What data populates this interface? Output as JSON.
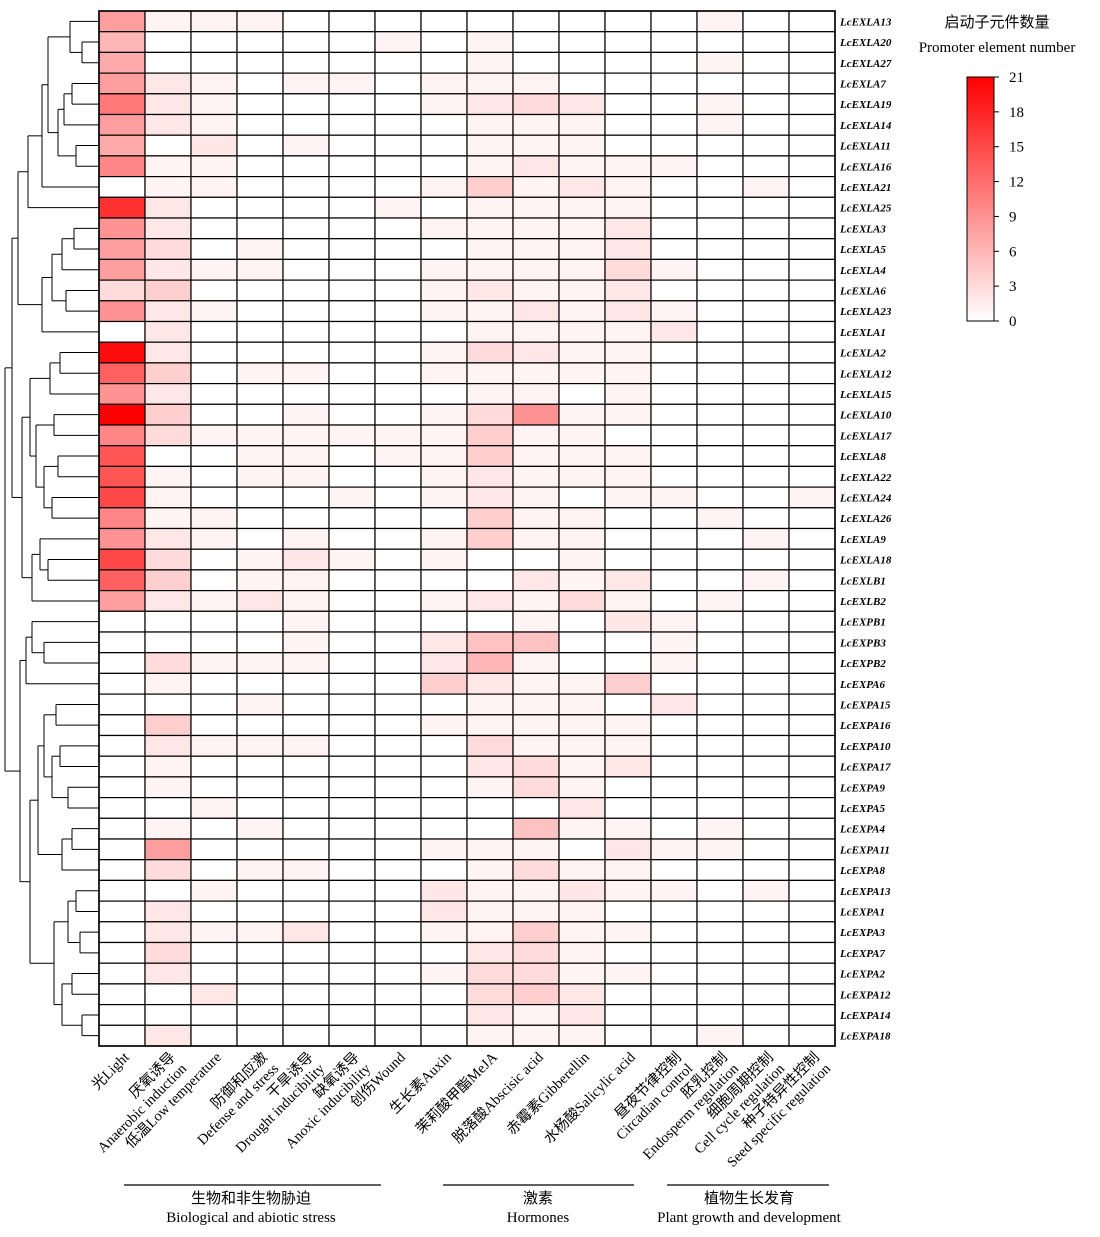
{
  "chart_data": {
    "type": "heatmap",
    "title": "",
    "legend": {
      "title_zh": "启动子元件数量",
      "title_en": "Promoter element number",
      "ticks": [
        21,
        18,
        15,
        12,
        9,
        6,
        3,
        0
      ],
      "min": 0,
      "max": 21,
      "color_low": "#ffffff",
      "color_high": "#ff0000",
      "placement": "top-right"
    },
    "columns": [
      "光Light",
      "厌氧诱导 Anaerobic induction",
      "低温Low temperature",
      "防御和应激 Defense and stress",
      "干旱诱导 Drought inducibility",
      "缺氧诱导 Anoxic inducibility",
      "创伤Wound",
      "生长素Auxin",
      "茉莉酸甲酯MeJA",
      "脱落酸Abscisic acid",
      "赤霉素Gibberellin",
      "水杨酸Salicylic acid",
      "昼夜节律控制 Circadian control",
      "胚乳控制 Endosperm regulation",
      "细胞周期控制 Cell cycle regulation",
      "种子特异性控制 Seed specific regulation"
    ],
    "column_labels": [
      [
        "光Light"
      ],
      [
        "厌氧诱导",
        "Anaerobic induction"
      ],
      [
        "低温Low temperature"
      ],
      [
        "防御和应激",
        "Defense and stress"
      ],
      [
        "干旱诱导",
        "Drought inducibility"
      ],
      [
        "缺氧诱导",
        "Anoxic inducibility"
      ],
      [
        "创伤Wound"
      ],
      [
        "生长素Auxin"
      ],
      [
        "茉莉酸甲酯MeJA"
      ],
      [
        "脱落酸Abscisic acid"
      ],
      [
        "赤霉素Gibberellin"
      ],
      [
        "水杨酸Salicylic acid"
      ],
      [
        "昼夜节律控制",
        "Circadian control"
      ],
      [
        "胚乳控制",
        "Endosperm regulation"
      ],
      [
        "细胞周期控制",
        "Cell cycle regulation"
      ],
      [
        "种子特异性控制",
        "Seed specific regulation"
      ]
    ],
    "column_groups": [
      {
        "zh": "生物和非生物胁迫",
        "en": "Biological and abiotic stress",
        "start": 1,
        "end": 6
      },
      {
        "zh": "激素",
        "en": "Hormones",
        "start": 7,
        "end": 11
      },
      {
        "zh": "植物生长发育",
        "en": "Plant growth and development",
        "start": 12,
        "end": 15
      }
    ],
    "rows": [
      "LcEXLA13",
      "LcEXLA20",
      "LcEXLA27",
      "LcEXLA7",
      "LcEXLA19",
      "LcEXLA14",
      "LcEXLA11",
      "LcEXLA16",
      "LcEXLA21",
      "LcEXLA25",
      "LcEXLA3",
      "LcEXLA5",
      "LcEXLA4",
      "LcEXLA6",
      "LcEXLA23",
      "LcEXLA1",
      "LcEXLA2",
      "LcEXLA12",
      "LcEXLA15",
      "LcEXLA10",
      "LcEXLA17",
      "LcEXLA8",
      "LcEXLA22",
      "LcEXLA24",
      "LcEXLA26",
      "LcEXLA9",
      "LcEXLA18",
      "LcEXLB1",
      "LcEXLB2",
      "LcEXPB1",
      "LcEXPB3",
      "LcEXPB2",
      "LcEXPA6",
      "LcEXPA15",
      "LcEXPA16",
      "LcEXPA10",
      "LcEXPA17",
      "LcEXPA9",
      "LcEXPA5",
      "LcEXPA4",
      "LcEXPA11",
      "LcEXPA8",
      "LcEXPA13",
      "LcEXPA1",
      "LcEXPA3",
      "LcEXPA7",
      "LcEXPA2",
      "LcEXPA12",
      "LcEXPA14",
      "LcEXPA18"
    ],
    "values": [
      [
        8,
        1,
        1,
        1,
        0,
        0,
        0,
        0,
        0,
        0,
        0,
        0,
        0,
        1,
        0,
        0
      ],
      [
        6,
        0,
        0,
        0,
        0,
        0,
        1,
        0,
        1,
        0,
        0,
        0,
        0,
        0,
        0,
        0
      ],
      [
        7,
        0,
        0,
        0,
        0,
        0,
        0,
        0,
        1,
        0,
        0,
        0,
        0,
        1,
        0,
        0
      ],
      [
        8,
        2,
        1,
        0,
        1,
        1,
        0,
        1,
        1,
        1,
        0,
        0,
        0,
        0,
        0,
        0
      ],
      [
        11,
        2,
        1,
        0,
        0,
        0,
        0,
        1,
        2,
        3,
        2,
        0,
        0,
        1,
        0,
        0
      ],
      [
        8,
        2,
        1,
        0,
        0,
        0,
        0,
        0,
        1,
        1,
        1,
        0,
        0,
        1,
        0,
        0
      ],
      [
        7,
        0,
        2,
        0,
        1,
        0,
        0,
        0,
        1,
        1,
        1,
        0,
        0,
        0,
        0,
        0
      ],
      [
        10,
        1,
        1,
        0,
        0,
        0,
        0,
        0,
        1,
        2,
        1,
        1,
        1,
        0,
        0,
        0
      ],
      [
        0,
        1,
        1,
        0,
        0,
        0,
        0,
        1,
        4,
        1,
        2,
        1,
        0,
        0,
        1,
        0
      ],
      [
        17,
        2,
        0,
        0,
        0,
        0,
        1,
        0,
        1,
        1,
        1,
        1,
        0,
        0,
        0,
        0
      ],
      [
        9,
        2,
        0,
        0,
        0,
        0,
        0,
        1,
        1,
        1,
        1,
        2,
        0,
        0,
        0,
        0
      ],
      [
        8,
        3,
        0,
        1,
        0,
        0,
        0,
        0,
        1,
        1,
        1,
        2,
        0,
        0,
        0,
        0
      ],
      [
        8,
        2,
        1,
        1,
        0,
        0,
        0,
        1,
        1,
        1,
        1,
        3,
        1,
        0,
        0,
        0
      ],
      [
        3,
        4,
        0,
        0,
        0,
        0,
        0,
        1,
        2,
        1,
        1,
        2,
        0,
        0,
        0,
        0
      ],
      [
        9,
        2,
        1,
        0,
        0,
        0,
        0,
        1,
        1,
        2,
        1,
        2,
        1,
        0,
        0,
        0
      ],
      [
        0,
        2,
        0,
        0,
        0,
        0,
        0,
        0,
        1,
        1,
        1,
        1,
        2,
        0,
        0,
        0
      ],
      [
        20,
        2,
        0,
        0,
        0,
        0,
        0,
        1,
        3,
        2,
        1,
        1,
        0,
        0,
        0,
        0
      ],
      [
        13,
        4,
        0,
        1,
        1,
        0,
        0,
        1,
        1,
        1,
        1,
        1,
        0,
        0,
        0,
        0
      ],
      [
        9,
        2,
        0,
        0,
        0,
        0,
        0,
        0,
        1,
        1,
        0,
        1,
        0,
        0,
        0,
        0
      ],
      [
        21,
        4,
        0,
        0,
        1,
        0,
        0,
        1,
        3,
        9,
        1,
        1,
        0,
        0,
        0,
        0
      ],
      [
        10,
        3,
        1,
        1,
        1,
        1,
        1,
        1,
        4,
        1,
        1,
        0,
        0,
        0,
        0,
        0
      ],
      [
        14,
        0,
        0,
        1,
        1,
        0,
        1,
        1,
        4,
        1,
        1,
        1,
        0,
        0,
        0,
        0
      ],
      [
        14,
        1,
        0,
        1,
        1,
        0,
        0,
        1,
        2,
        1,
        1,
        1,
        0,
        0,
        0,
        0
      ],
      [
        15,
        1,
        0,
        0,
        0,
        1,
        0,
        1,
        2,
        1,
        0,
        1,
        1,
        0,
        0,
        1
      ],
      [
        10,
        1,
        1,
        0,
        0,
        0,
        0,
        0,
        4,
        1,
        1,
        0,
        0,
        1,
        0,
        0
      ],
      [
        9,
        2,
        1,
        0,
        1,
        0,
        0,
        1,
        4,
        1,
        1,
        0,
        0,
        0,
        1,
        0
      ],
      [
        15,
        3,
        0,
        1,
        2,
        1,
        0,
        1,
        0,
        0,
        1,
        0,
        0,
        0,
        0,
        0
      ],
      [
        13,
        4,
        0,
        1,
        1,
        0,
        0,
        0,
        0,
        2,
        1,
        2,
        0,
        0,
        1,
        0
      ],
      [
        8,
        2,
        1,
        2,
        1,
        0,
        0,
        1,
        2,
        1,
        3,
        1,
        0,
        1,
        0,
        0
      ],
      [
        0,
        0,
        0,
        0,
        1,
        0,
        0,
        0,
        0,
        1,
        0,
        2,
        1,
        0,
        0,
        0
      ],
      [
        0,
        0,
        0,
        0,
        1,
        0,
        0,
        2,
        5,
        5,
        0,
        0,
        1,
        0,
        0,
        0
      ],
      [
        0,
        3,
        1,
        1,
        1,
        0,
        0,
        2,
        6,
        1,
        0,
        0,
        1,
        0,
        0,
        0
      ],
      [
        0,
        1,
        0,
        0,
        0,
        0,
        0,
        4,
        2,
        1,
        1,
        4,
        0,
        0,
        0,
        0
      ],
      [
        0,
        0,
        0,
        1,
        0,
        0,
        0,
        0,
        1,
        1,
        1,
        0,
        2,
        0,
        0,
        0
      ],
      [
        0,
        4,
        0,
        0,
        0,
        0,
        0,
        1,
        1,
        1,
        1,
        1,
        0,
        0,
        0,
        0
      ],
      [
        0,
        2,
        1,
        1,
        1,
        0,
        0,
        0,
        3,
        1,
        1,
        1,
        0,
        0,
        0,
        0
      ],
      [
        0,
        1,
        0,
        0,
        0,
        0,
        0,
        0,
        2,
        3,
        1,
        2,
        0,
        0,
        0,
        0
      ],
      [
        0,
        1,
        0,
        0,
        0,
        0,
        0,
        0,
        1,
        3,
        1,
        0,
        0,
        0,
        0,
        0
      ],
      [
        0,
        0,
        1,
        0,
        0,
        0,
        0,
        0,
        0,
        0,
        2,
        0,
        0,
        0,
        0,
        0
      ],
      [
        0,
        1,
        0,
        1,
        0,
        0,
        0,
        0,
        0,
        5,
        1,
        1,
        0,
        1,
        0,
        0
      ],
      [
        0,
        8,
        0,
        0,
        0,
        0,
        0,
        1,
        1,
        1,
        0,
        2,
        1,
        1,
        0,
        0
      ],
      [
        0,
        3,
        0,
        1,
        1,
        0,
        0,
        0,
        1,
        3,
        1,
        1,
        0,
        0,
        0,
        0
      ],
      [
        0,
        0,
        1,
        0,
        0,
        0,
        0,
        2,
        1,
        1,
        2,
        1,
        1,
        0,
        1,
        0
      ],
      [
        0,
        2,
        0,
        0,
        0,
        0,
        0,
        2,
        1,
        1,
        1,
        0,
        0,
        0,
        0,
        0
      ],
      [
        0,
        2,
        1,
        1,
        2,
        0,
        0,
        1,
        1,
        4,
        1,
        1,
        0,
        0,
        0,
        0
      ],
      [
        0,
        3,
        0,
        0,
        0,
        0,
        0,
        0,
        2,
        3,
        1,
        0,
        0,
        0,
        0,
        0
      ],
      [
        0,
        2,
        0,
        0,
        0,
        0,
        0,
        1,
        3,
        3,
        1,
        1,
        0,
        0,
        0,
        0
      ],
      [
        0,
        0,
        2,
        0,
        0,
        0,
        0,
        0,
        3,
        4,
        2,
        0,
        0,
        0,
        0,
        0
      ],
      [
        0,
        0,
        0,
        0,
        0,
        0,
        0,
        0,
        2,
        1,
        2,
        0,
        0,
        0,
        0,
        0
      ],
      [
        0,
        2,
        0,
        0,
        0,
        0,
        0,
        0,
        1,
        1,
        1,
        0,
        0,
        1,
        0,
        0
      ]
    ]
  }
}
